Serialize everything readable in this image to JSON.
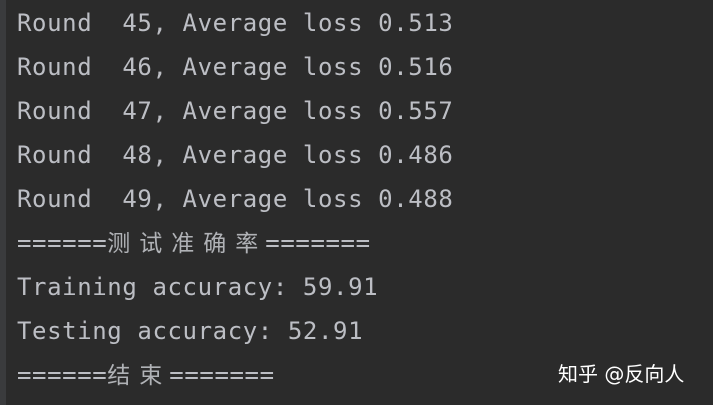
{
  "console": {
    "rounds": [
      "Round  45, Average loss 0.513",
      "Round  46, Average loss 0.516",
      "Round  47, Average loss 0.557",
      "Round  48, Average loss 0.486",
      "Round  49, Average loss 0.488"
    ],
    "test_header": {
      "left": "======",
      "text": "测试准确率",
      "right": "======="
    },
    "training_accuracy": "Training accuracy: 59.91",
    "testing_accuracy": "Testing accuracy: 52.91",
    "end_header": {
      "left": "======",
      "text": "结束",
      "right": "======="
    }
  },
  "watermark": "知乎 @反向人",
  "colors": {
    "background": "#2b2b2b",
    "text": "#bcbec4"
  }
}
